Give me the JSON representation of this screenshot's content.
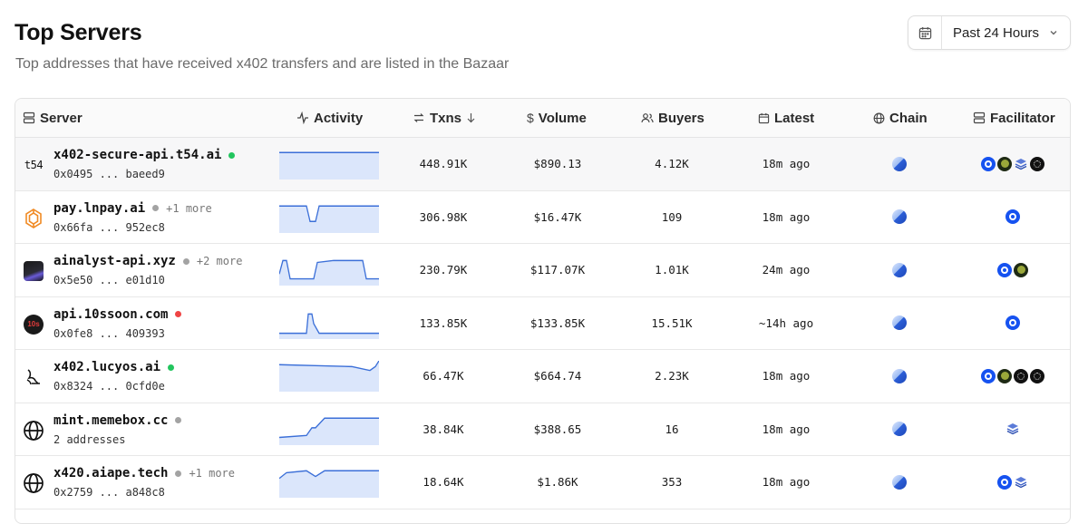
{
  "header": {
    "title": "Top Servers",
    "subtitle": "Top addresses that have received x402 transfers and are listed in the Bazaar",
    "range_label": "Past 24 Hours",
    "calendar_icon": "calendar-icon",
    "chevron_icon": "chevron-down-icon"
  },
  "columns": {
    "server": "Server",
    "activity": "Activity",
    "txns": "Txns",
    "volume": "Volume",
    "buyers": "Buyers",
    "latest": "Latest",
    "chain": "Chain",
    "facilitator": "Facilitator"
  },
  "colors": {
    "status_green": "#22c55e",
    "status_gray": "#a3a3a3",
    "status_red": "#ef4444",
    "spark_line": "#3b6fd8",
    "spark_fill": "#dbe6fb"
  },
  "rows": [
    {
      "name": "x402-secure-api.t54.ai",
      "more": "",
      "status": "green",
      "address": "0x0495 ... baeed9",
      "logo": "t54-logo",
      "txns": "448.91K",
      "volume": "$890.13",
      "buyers": "4.12K",
      "latest": "18m ago",
      "chain_icon": "base-chain-icon",
      "facilitators": [
        "coinbase",
        "tree",
        "layers",
        "dark"
      ]
    },
    {
      "name": "pay.lnpay.ai",
      "more": "+1 more",
      "status": "gray",
      "address": "0x66fa ... 952ec8",
      "logo": "lnpay-logo",
      "txns": "306.98K",
      "volume": "$16.47K",
      "buyers": "109",
      "latest": "18m ago",
      "chain_icon": "base-chain-icon",
      "facilitators": [
        "coinbase"
      ]
    },
    {
      "name": "ainalyst-api.xyz",
      "more": "+2 more",
      "status": "gray",
      "address": "0x5e50 ... e01d10",
      "logo": "ainalyst-logo",
      "txns": "230.79K",
      "volume": "$117.07K",
      "buyers": "1.01K",
      "latest": "24m ago",
      "chain_icon": "base-chain-icon",
      "facilitators": [
        "coinbase",
        "tree"
      ]
    },
    {
      "name": "api.10ssoon.com",
      "more": "",
      "status": "red",
      "address": "0x0fe8 ... 409393",
      "logo": "10ssoon-logo",
      "txns": "133.85K",
      "volume": "$133.85K",
      "buyers": "15.51K",
      "latest": "~14h ago",
      "chain_icon": "base-chain-icon",
      "facilitators": [
        "coinbase"
      ]
    },
    {
      "name": "x402.lucyos.ai",
      "more": "",
      "status": "green",
      "address": "0x8324 ... 0cfd0e",
      "logo": "lucyos-logo",
      "txns": "66.47K",
      "volume": "$664.74",
      "buyers": "2.23K",
      "latest": "18m ago",
      "chain_icon": "base-chain-icon",
      "facilitators": [
        "coinbase",
        "tree",
        "dark",
        "dark"
      ]
    },
    {
      "name": "mint.memebox.cc",
      "more": "",
      "status": "gray",
      "address": "2 addresses",
      "logo": "globe-icon",
      "txns": "38.84K",
      "volume": "$388.65",
      "buyers": "16",
      "latest": "18m ago",
      "chain_icon": "base-chain-icon",
      "facilitators": [
        "layers"
      ]
    },
    {
      "name": "x420.aiape.tech",
      "more": "+1 more",
      "status": "gray",
      "address": "0x2759 ... a848c8",
      "logo": "globe-icon",
      "txns": "18.64K",
      "volume": "$1.86K",
      "buyers": "353",
      "latest": "18m ago",
      "chain_icon": "base-chain-icon",
      "facilitators": [
        "coinbase",
        "layers"
      ]
    }
  ]
}
